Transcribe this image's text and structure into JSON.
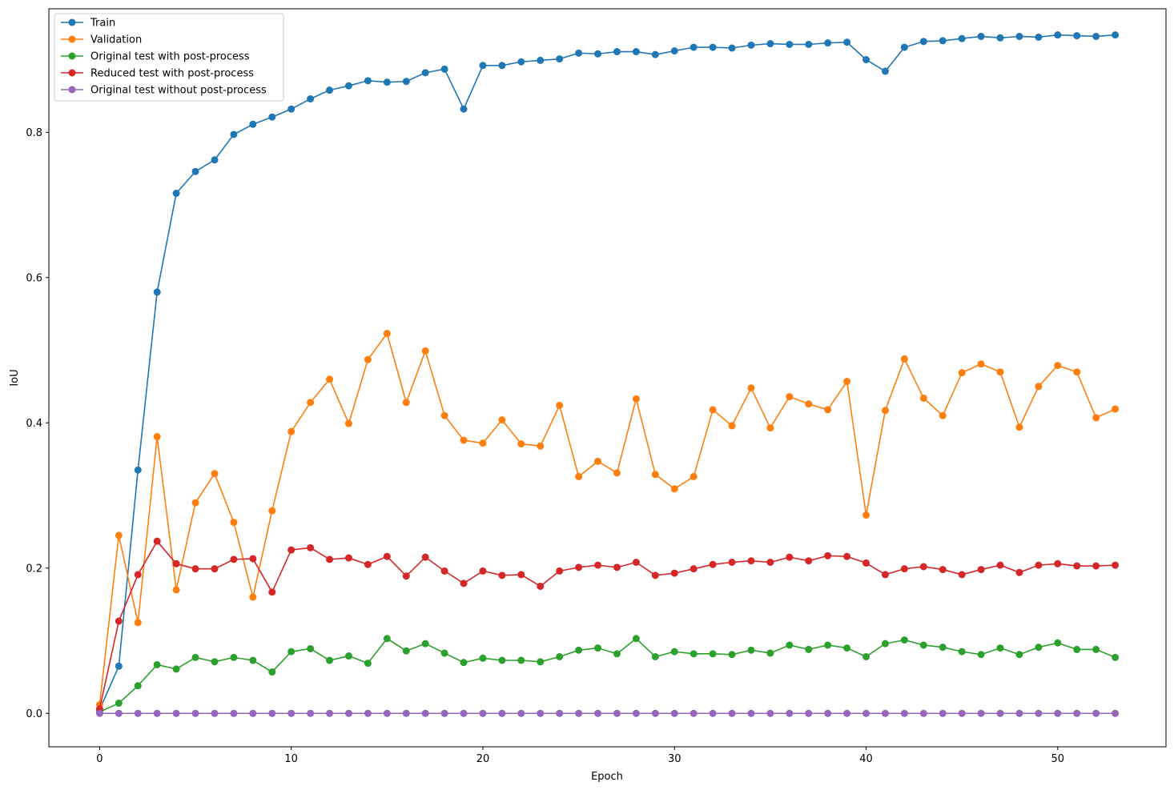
{
  "chart_data": {
    "type": "line",
    "title": "",
    "xlabel": "Epoch",
    "ylabel": "IoU",
    "xlim": [
      -2.65,
      55.65
    ],
    "ylim": [
      -0.046,
      0.97
    ],
    "xticks": [
      0,
      10,
      20,
      30,
      40,
      50
    ],
    "xtick_labels": [
      "0",
      "10",
      "20",
      "30",
      "40",
      "50"
    ],
    "yticks": [
      0.0,
      0.2,
      0.4,
      0.6,
      0.8
    ],
    "ytick_labels": [
      "0.0",
      "0.2",
      "0.4",
      "0.6",
      "0.8"
    ],
    "grid": false,
    "legend_position": "top-left",
    "markers": "circle",
    "series": [
      {
        "name": "Train",
        "color": "#1f77b4",
        "values": [
          0.005,
          0.065,
          0.335,
          0.58,
          0.716,
          0.746,
          0.762,
          0.797,
          0.811,
          0.821,
          0.832,
          0.846,
          0.858,
          0.864,
          0.871,
          0.869,
          0.87,
          0.882,
          0.887,
          0.832,
          0.892,
          0.892,
          0.897,
          0.899,
          0.901,
          0.909,
          0.908,
          0.911,
          0.911,
          0.907,
          0.912,
          0.917,
          0.917,
          0.916,
          0.92,
          0.922,
          0.921,
          0.921,
          0.923,
          0.924,
          0.9,
          0.884,
          0.917,
          0.925,
          0.926,
          0.929,
          0.932,
          0.93,
          0.932,
          0.931,
          0.934,
          0.933,
          0.932,
          0.934
        ]
      },
      {
        "name": "Validation",
        "color": "#ff7f0e",
        "values": [
          0.012,
          0.245,
          0.125,
          0.381,
          0.17,
          0.29,
          0.33,
          0.263,
          0.16,
          0.279,
          0.388,
          0.428,
          0.46,
          0.399,
          0.487,
          0.523,
          0.428,
          0.499,
          0.41,
          0.376,
          0.372,
          0.404,
          0.371,
          0.368,
          0.424,
          0.326,
          0.347,
          0.331,
          0.433,
          0.329,
          0.309,
          0.326,
          0.418,
          0.396,
          0.448,
          0.393,
          0.436,
          0.426,
          0.418,
          0.457,
          0.273,
          0.417,
          0.488,
          0.434,
          0.41,
          0.469,
          0.481,
          0.47,
          0.394,
          0.45,
          0.479,
          0.47,
          0.407,
          0.419
        ]
      },
      {
        "name": "Original test with post-process",
        "color": "#2ca02c",
        "values": [
          0.002,
          0.014,
          0.038,
          0.067,
          0.061,
          0.077,
          0.071,
          0.077,
          0.073,
          0.057,
          0.085,
          0.089,
          0.073,
          0.079,
          0.069,
          0.103,
          0.086,
          0.096,
          0.083,
          0.07,
          0.076,
          0.073,
          0.073,
          0.071,
          0.078,
          0.087,
          0.09,
          0.082,
          0.103,
          0.078,
          0.085,
          0.082,
          0.082,
          0.081,
          0.087,
          0.083,
          0.094,
          0.088,
          0.094,
          0.09,
          0.078,
          0.096,
          0.101,
          0.094,
          0.091,
          0.085,
          0.081,
          0.09,
          0.081,
          0.091,
          0.097,
          0.088,
          0.088,
          0.077
        ]
      },
      {
        "name": "Reduced test with post-process",
        "color": "#d62728",
        "values": [
          0.006,
          0.127,
          0.191,
          0.237,
          0.206,
          0.199,
          0.199,
          0.212,
          0.213,
          0.167,
          0.225,
          0.228,
          0.212,
          0.214,
          0.205,
          0.216,
          0.189,
          0.215,
          0.196,
          0.179,
          0.196,
          0.19,
          0.191,
          0.175,
          0.196,
          0.201,
          0.204,
          0.201,
          0.208,
          0.19,
          0.193,
          0.199,
          0.205,
          0.208,
          0.21,
          0.208,
          0.215,
          0.21,
          0.217,
          0.216,
          0.207,
          0.191,
          0.199,
          0.202,
          0.198,
          0.191,
          0.198,
          0.204,
          0.194,
          0.204,
          0.206,
          0.203,
          0.203,
          0.204
        ]
      },
      {
        "name": "Original test without post-process",
        "color": "#9467bd",
        "values": [
          0.0,
          0.0,
          0.0,
          0.0,
          0.0,
          0.0,
          0.0,
          0.0,
          0.0,
          0.0,
          0.0,
          0.0,
          0.0,
          0.0,
          0.0,
          0.0,
          0.0,
          0.0,
          0.0,
          0.0,
          0.0,
          0.0,
          0.0,
          0.0,
          0.0,
          0.0,
          0.0,
          0.0,
          0.0,
          0.0,
          0.0,
          0.0,
          0.0,
          0.0,
          0.0,
          0.0,
          0.0,
          0.0,
          0.0,
          0.0,
          0.0,
          0.0,
          0.0,
          0.0,
          0.0,
          0.0,
          0.0,
          0.0,
          0.0,
          0.0,
          0.0,
          0.0,
          0.0,
          0.0
        ]
      }
    ]
  }
}
